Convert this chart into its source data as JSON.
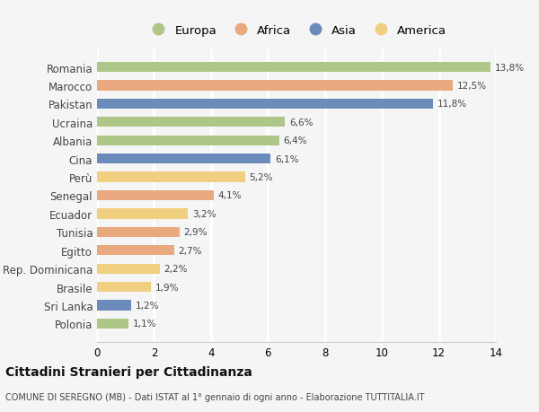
{
  "countries": [
    "Romania",
    "Marocco",
    "Pakistan",
    "Ucraina",
    "Albania",
    "Cina",
    "Perù",
    "Senegal",
    "Ecuador",
    "Tunisia",
    "Egitto",
    "Rep. Dominicana",
    "Brasile",
    "Sri Lanka",
    "Polonia"
  ],
  "values": [
    13.8,
    12.5,
    11.8,
    6.6,
    6.4,
    6.1,
    5.2,
    4.1,
    3.2,
    2.9,
    2.7,
    2.2,
    1.9,
    1.2,
    1.1
  ],
  "labels": [
    "13,8%",
    "12,5%",
    "11,8%",
    "6,6%",
    "6,4%",
    "6,1%",
    "5,2%",
    "4,1%",
    "3,2%",
    "2,9%",
    "2,7%",
    "2,2%",
    "1,9%",
    "1,2%",
    "1,1%"
  ],
  "colors": [
    "#aec687",
    "#e8a97e",
    "#6b8cba",
    "#aec687",
    "#aec687",
    "#6b8cba",
    "#f0d080",
    "#e8a97e",
    "#f0d080",
    "#e8a97e",
    "#e8a97e",
    "#f0d080",
    "#f0d080",
    "#6b8cba",
    "#aec687"
  ],
  "legend_labels": [
    "Europa",
    "Africa",
    "Asia",
    "America"
  ],
  "legend_colors": [
    "#aec687",
    "#e8a97e",
    "#6b8cba",
    "#f0d080"
  ],
  "xlim": [
    0,
    14
  ],
  "xticks": [
    0,
    2,
    4,
    6,
    8,
    10,
    12,
    14
  ],
  "title": "Cittadini Stranieri per Cittadinanza",
  "subtitle": "COMUNE DI SEREGNO (MB) - Dati ISTAT al 1° gennaio di ogni anno - Elaborazione TUTTITALIA.IT",
  "bg_color": "#f5f5f5",
  "grid_color": "#ffffff",
  "bar_height": 0.55
}
